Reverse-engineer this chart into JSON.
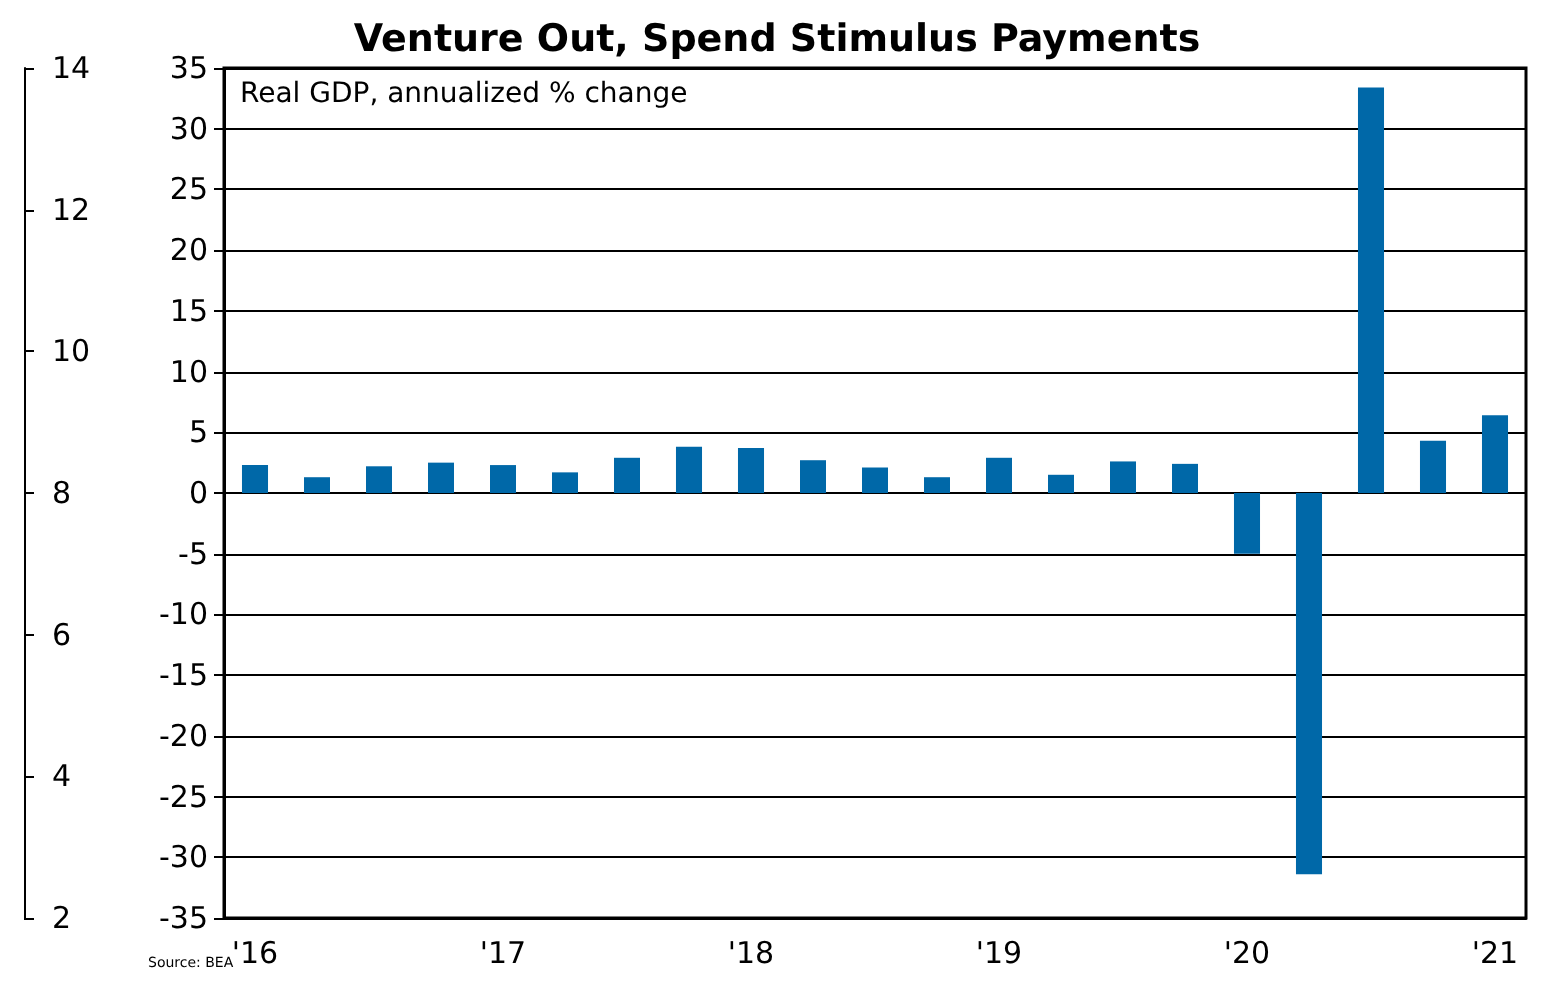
{
  "chart_data": {
    "type": "bar",
    "title": "Venture Out, Spend Stimulus Payments",
    "subtitle": "Real GDP, annualized % change",
    "categories": [
      "'16",
      null,
      null,
      null,
      "'17",
      null,
      null,
      null,
      "'18",
      null,
      null,
      null,
      "'19",
      null,
      null,
      null,
      "'20",
      null,
      null,
      null,
      "'21"
    ],
    "values": [
      2.3,
      1.3,
      2.2,
      2.5,
      2.3,
      1.7,
      2.9,
      3.8,
      3.7,
      2.7,
      2.1,
      1.3,
      2.9,
      1.5,
      2.6,
      2.4,
      -5.0,
      -31.4,
      33.4,
      4.3,
      6.4
    ],
    "color": "#0068a8",
    "ylim": [
      -35,
      35
    ],
    "yticks": [
      -35,
      -30,
      -25,
      -20,
      -15,
      -10,
      -5,
      0,
      5,
      10,
      15,
      20,
      25,
      30,
      35
    ],
    "y2lim": [
      2,
      14
    ],
    "y2ticks": [
      2,
      4,
      6,
      8,
      10,
      12,
      14
    ],
    "grid": "y",
    "annotations": [
      "Source: BEA"
    ]
  }
}
